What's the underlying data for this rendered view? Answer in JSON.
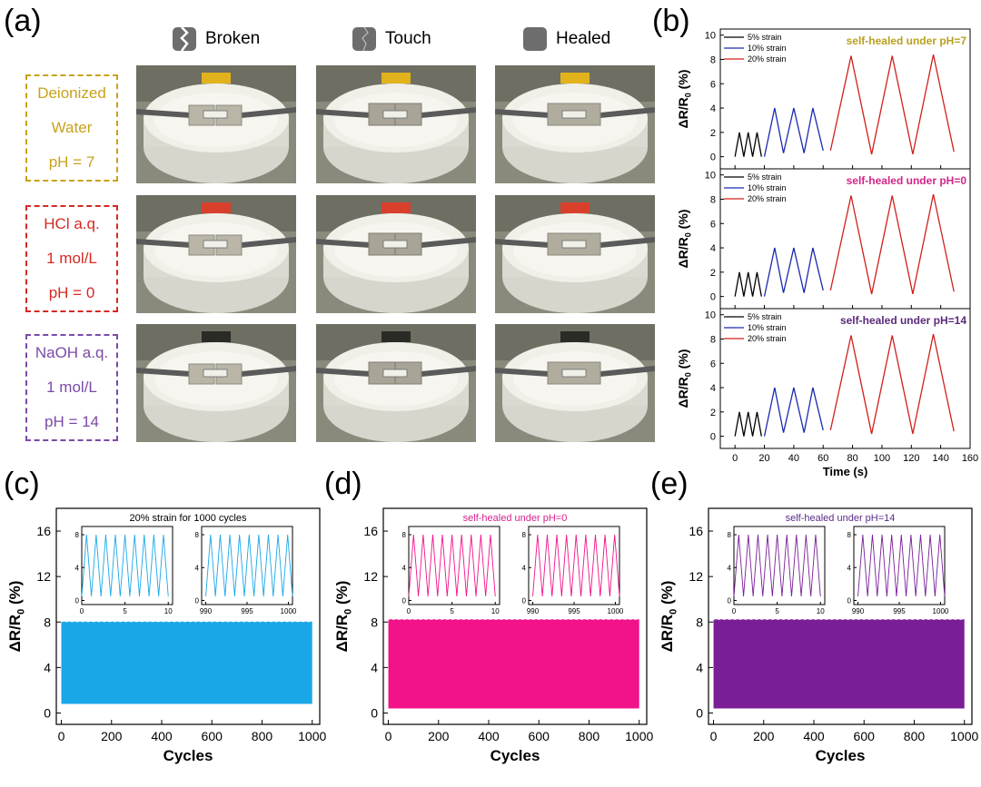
{
  "panels": {
    "a": "(a)",
    "b": "(b)",
    "c": "(c)",
    "d": "(d)",
    "e": "(e)"
  },
  "states": [
    {
      "label": "Broken",
      "icon": "broken-strip-icon"
    },
    {
      "label": "Touch",
      "icon": "touch-strip-icon"
    },
    {
      "label": "Healed",
      "icon": "healed-strip-icon"
    }
  ],
  "conditions": [
    {
      "lines": [
        "Deionized",
        "Water",
        "pH = 7"
      ],
      "color": "#c8a21a",
      "tab": "#e2b21c"
    },
    {
      "lines": [
        "HCl  a.q.",
        "1 mol/L",
        "pH = 0"
      ],
      "color": "#d42a24",
      "tab": "#d8402c"
    },
    {
      "lines": [
        "NaOH a.q.",
        "1 mol/L",
        "pH = 14"
      ],
      "color": "#7a4aa8",
      "tab": "#2a2a26"
    }
  ],
  "chart_data": [
    {
      "type": "line",
      "panel": "(b)",
      "subplots": [
        {
          "annotation": "self-healed under pH=7",
          "annotation_color": "#b8a020"
        },
        {
          "annotation": "self-healed under pH=0",
          "annotation_color": "#d2268a"
        },
        {
          "annotation": "self-healed under pH=14",
          "annotation_color": "#5a2a7a"
        }
      ],
      "legend": [
        "5% strain",
        "10% strain",
        "20% strain"
      ],
      "series_colors": [
        "#000000",
        "#1a2ab0",
        "#d0201c"
      ],
      "xlabel": "Time (s)",
      "ylabel": "ΔR/R0 (%)",
      "xlim": [
        -10,
        160
      ],
      "ylim": [
        -1,
        10.5
      ],
      "xticks": [
        0,
        20,
        40,
        60,
        80,
        100,
        120,
        140,
        160
      ],
      "yticks": [
        0,
        2,
        4,
        6,
        8,
        10
      ],
      "series": [
        {
          "name": "5% strain",
          "x": [
            0,
            3,
            6,
            9,
            12,
            15,
            18
          ],
          "y": [
            0,
            2,
            0,
            2,
            0,
            2,
            0
          ]
        },
        {
          "name": "10% strain",
          "x": [
            20,
            27,
            33,
            40,
            47,
            53,
            60
          ],
          "y": [
            0,
            4,
            0.3,
            4,
            0.3,
            4,
            0.5
          ]
        },
        {
          "name": "20% strain",
          "x": [
            65,
            79,
            93,
            107,
            121,
            135,
            149
          ],
          "y": [
            0.5,
            8.3,
            0.2,
            8.3,
            0.2,
            8.4,
            0.4
          ]
        }
      ]
    },
    {
      "type": "line",
      "panel": "(c)",
      "xlabel": "Cycles",
      "ylabel": "ΔR/R0 (%)",
      "xlim": [
        -20,
        1030
      ],
      "ylim": [
        -1,
        18
      ],
      "xticks": [
        0,
        200,
        400,
        600,
        800,
        1000
      ],
      "yticks": [
        0,
        4,
        8,
        12,
        16
      ],
      "band": [
        0.8,
        8.0
      ],
      "color": "#1aa7e8",
      "inset_title": "20% strain for 1000 cycles",
      "inset_title_color": "#000000",
      "insets": [
        {
          "xticks": [
            0,
            5,
            10
          ],
          "yticks": [
            0,
            4,
            8
          ],
          "xlim": [
            0,
            10.5
          ],
          "cycles": 9,
          "xstart": 0
        },
        {
          "xticks": [
            990,
            995,
            1000
          ],
          "yticks": [
            0,
            4,
            8
          ],
          "xlim": [
            989.5,
            1000.5
          ],
          "cycles": 9,
          "xstart": 990
        }
      ]
    },
    {
      "type": "line",
      "panel": "(d)",
      "xlabel": "Cycles",
      "ylabel": "ΔR/R0 (%)",
      "xlim": [
        -20,
        1030
      ],
      "ylim": [
        -1,
        18
      ],
      "xticks": [
        0,
        200,
        400,
        600,
        800,
        1000
      ],
      "yticks": [
        0,
        4,
        8,
        12,
        16
      ],
      "band": [
        0.4,
        8.2
      ],
      "color": "#f2128a",
      "inset_title": "self-healed under pH=0",
      "inset_title_color": "#d8208e",
      "insets": [
        {
          "xticks": [
            0,
            5,
            10
          ],
          "yticks": [
            0,
            4,
            8
          ],
          "xlim": [
            0,
            10.5
          ],
          "cycles": 9,
          "xstart": 0
        },
        {
          "xticks": [
            990,
            995,
            1000
          ],
          "yticks": [
            0,
            4,
            8
          ],
          "xlim": [
            989.5,
            1000.5
          ],
          "cycles": 9,
          "xstart": 990
        }
      ]
    },
    {
      "type": "line",
      "panel": "(e)",
      "xlabel": "Cycles",
      "ylabel": "ΔR/R0 (%)",
      "xlim": [
        -20,
        1030
      ],
      "ylim": [
        -1,
        18
      ],
      "xticks": [
        0,
        200,
        400,
        600,
        800,
        1000
      ],
      "yticks": [
        0,
        4,
        8,
        12,
        16
      ],
      "band": [
        0.4,
        8.2
      ],
      "color": "#7a1e98",
      "inset_title": "self-healed under pH=14",
      "inset_title_color": "#5a2a8a",
      "insets": [
        {
          "xticks": [
            0,
            5,
            10
          ],
          "yticks": [
            0,
            4,
            8
          ],
          "xlim": [
            0,
            10.5
          ],
          "cycles": 9,
          "xstart": 0
        },
        {
          "xticks": [
            990,
            995,
            1000
          ],
          "yticks": [
            0,
            4,
            8
          ],
          "xlim": [
            989.5,
            1000.5
          ],
          "cycles": 9,
          "xstart": 990
        }
      ]
    }
  ]
}
